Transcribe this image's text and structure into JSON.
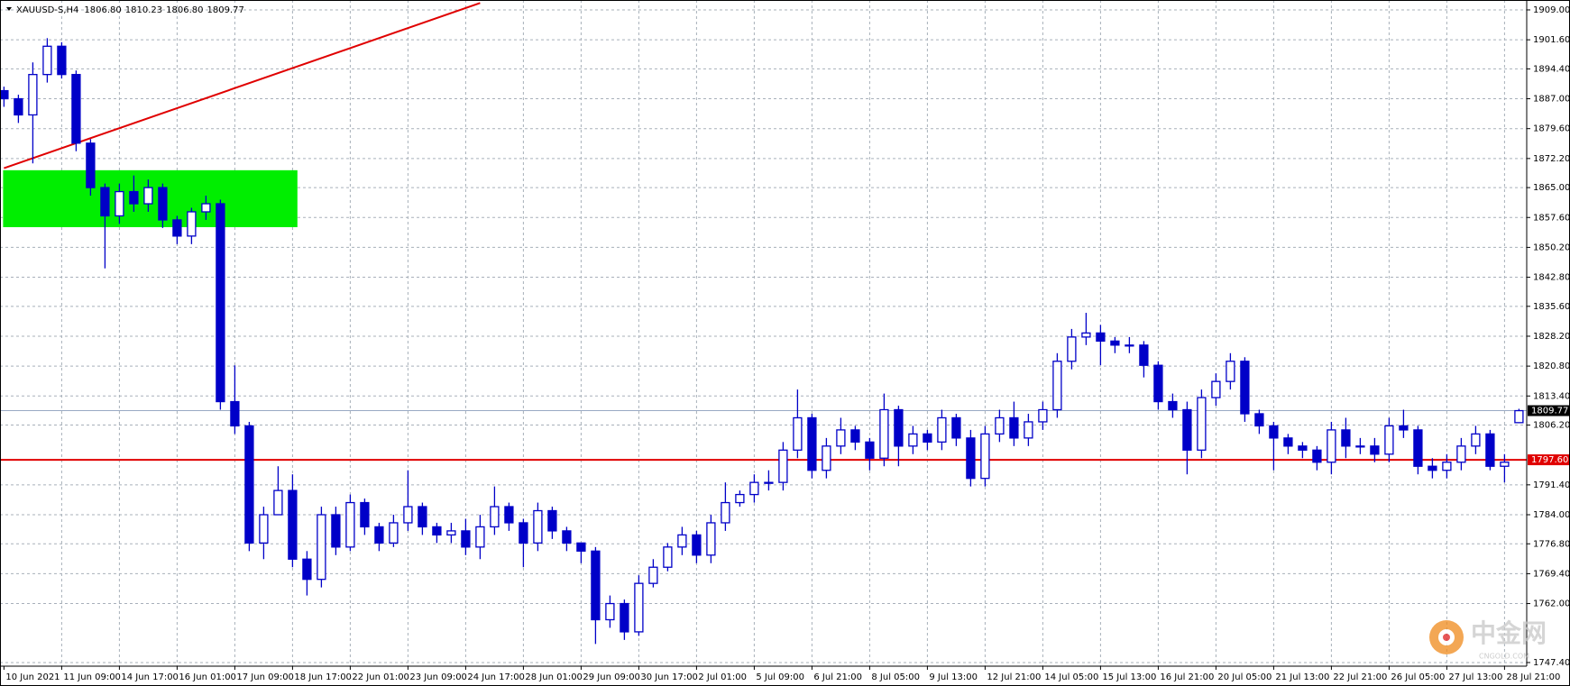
{
  "chart_data": {
    "type": "candlestick",
    "title": "XAUUSD-S,H4",
    "header_values": [
      {
        "value": 1806.8,
        "label": "1806.80"
      },
      {
        "value": 1810.23,
        "label": "1810.23"
      },
      {
        "value": 1806.8,
        "label": "1806.80"
      },
      {
        "value": 1809.77,
        "label": "1809.77"
      }
    ],
    "categories": [
      "10 Jun 2021",
      null,
      null,
      null,
      "11 Jun 09:00",
      null,
      null,
      null,
      "14 Jun 17:00",
      null,
      null,
      null,
      "16 Jun 01:00",
      null,
      null,
      null,
      "17 Jun 09:00",
      null,
      null,
      null,
      "18 Jun 17:00",
      null,
      null,
      null,
      "22 Jun 01:00",
      null,
      null,
      null,
      "23 Jun 09:00",
      null,
      null,
      null,
      "24 Jun 17:00",
      null,
      null,
      null,
      "28 Jun 01:00",
      null,
      null,
      null,
      "29 Jun 09:00",
      null,
      null,
      null,
      "30 Jun 17:00",
      null,
      null,
      null,
      "2 Jul 01:00",
      null,
      null,
      null,
      "5 Jul 09:00",
      null,
      null,
      null,
      "6 Jul 21:00",
      null,
      null,
      null,
      "8 Jul 05:00",
      null,
      null,
      null,
      "9 Jul 13:00",
      null,
      null,
      null,
      "12 Jul 21:00",
      null,
      null,
      null,
      "14 Jul 05:00",
      null,
      null,
      null,
      "15 Jul 13:00",
      null,
      null,
      null,
      "16 Jul 21:00",
      null,
      null,
      null,
      "20 Jul 05:00",
      null,
      null,
      null,
      "21 Jul 13:00",
      null,
      null,
      null,
      "22 Jul 21:00",
      null,
      null,
      null,
      "26 Jul 05:00",
      null,
      null,
      null,
      "27 Jul 13:00",
      null,
      null,
      null,
      "28 Jul 21:00",
      null
    ],
    "open": [
      1889,
      1887,
      1883,
      1893,
      1900,
      1893,
      1876,
      1865,
      1858,
      1864,
      1861,
      1865,
      1857,
      1853,
      1859,
      1861,
      1812,
      1806,
      1777,
      1784,
      1790,
      1773,
      1768,
      1784,
      1776,
      1787,
      1781,
      1777,
      1782,
      1786,
      1781,
      1779,
      1780,
      1776,
      1781,
      1786,
      1782,
      1777,
      1785,
      1780,
      1777,
      1775,
      1758,
      1762,
      1755,
      1767,
      1771,
      1776,
      1779,
      1774,
      1782,
      1787,
      1789,
      1792,
      1792,
      1800,
      1808,
      1795,
      1801,
      1805,
      1802,
      1798,
      1810,
      1801,
      1804,
      1802,
      1808,
      1803,
      1793,
      1804,
      1808,
      1803,
      1807,
      1810,
      1822,
      1828,
      1829,
      1827,
      1826,
      1826,
      1821,
      1812,
      1810,
      1800,
      1813,
      1817,
      1822,
      1809,
      1806,
      1803,
      1801,
      1800,
      1797,
      1805,
      1801,
      1801,
      1799,
      1806,
      1805,
      1796,
      1795,
      1797,
      1801,
      1804,
      1796,
      1806.8
    ],
    "high": [
      1890,
      1888,
      1896,
      1902,
      1901,
      1894,
      1877,
      1866,
      1866,
      1868,
      1867,
      1866,
      1858,
      1860,
      1863,
      1862,
      1821,
      1807,
      1786,
      1796,
      1794,
      1775,
      1786,
      1786,
      1789,
      1788,
      1782,
      1784,
      1795,
      1787,
      1782,
      1782,
      1783,
      1784,
      1791,
      1787,
      1783,
      1787,
      1786,
      1781,
      1777,
      1776,
      1764,
      1763,
      1769,
      1773,
      1777,
      1781,
      1780,
      1784,
      1792,
      1790,
      1794,
      1795,
      1802,
      1815,
      1809,
      1803,
      1808,
      1806,
      1803,
      1814,
      1811,
      1806,
      1805,
      1810,
      1809,
      1805,
      1806,
      1810,
      1812,
      1809,
      1812,
      1824,
      1830,
      1834,
      1831,
      1828,
      1828,
      1827,
      1822,
      1814,
      1812,
      1815,
      1819,
      1824,
      1823,
      1810,
      1807,
      1804,
      1802,
      1801,
      1807,
      1808,
      1803,
      1803,
      1808,
      1810,
      1806,
      1798,
      1799,
      1803,
      1806,
      1805,
      1799,
      1810.23
    ],
    "low": [
      1885,
      1881,
      1871,
      1891,
      1892,
      1874,
      1863,
      1845,
      1856,
      1859,
      1859,
      1855,
      1851,
      1851,
      1857,
      1810,
      1804,
      1775,
      1773,
      1784,
      1771,
      1764,
      1766,
      1774,
      1775,
      1779,
      1775,
      1776,
      1780,
      1779,
      1777,
      1777,
      1774,
      1773,
      1779,
      1780,
      1771,
      1775,
      1778,
      1775,
      1772,
      1752,
      1756,
      1753,
      1754,
      1766,
      1770,
      1774,
      1772,
      1772,
      1780,
      1786,
      1787,
      1790,
      1790,
      1798,
      1793,
      1793,
      1799,
      1800,
      1795,
      1796,
      1796,
      1799,
      1800,
      1800,
      1801,
      1791,
      1791,
      1802,
      1801,
      1801,
      1805,
      1808,
      1820,
      1826,
      1821,
      1824,
      1824,
      1818,
      1810,
      1808,
      1794,
      1798,
      1811,
      1815,
      1807,
      1804,
      1795,
      1799,
      1798,
      1795,
      1794,
      1798,
      1799,
      1797,
      1797,
      1803,
      1794,
      1793,
      1793,
      1795,
      1799,
      1795,
      1792,
      1806.8
    ],
    "close": [
      1887,
      1883,
      1893,
      1900,
      1893,
      1876,
      1865,
      1858,
      1864,
      1861,
      1865,
      1857,
      1853,
      1859,
      1861,
      1812,
      1806,
      1777,
      1784,
      1790,
      1773,
      1768,
      1784,
      1776,
      1787,
      1781,
      1777,
      1782,
      1786,
      1781,
      1779,
      1780,
      1776,
      1781,
      1786,
      1782,
      1777,
      1785,
      1780,
      1777,
      1775,
      1758,
      1762,
      1755,
      1767,
      1771,
      1776,
      1779,
      1774,
      1782,
      1787,
      1789,
      1792,
      1792,
      1800,
      1808,
      1795,
      1801,
      1805,
      1802,
      1798,
      1810,
      1801,
      1804,
      1802,
      1808,
      1803,
      1793,
      1804,
      1808,
      1803,
      1807,
      1810,
      1822,
      1828,
      1829,
      1827,
      1826,
      1826,
      1821,
      1812,
      1810,
      1800,
      1813,
      1817,
      1822,
      1809,
      1806,
      1803,
      1801,
      1800,
      1797,
      1805,
      1801,
      1801,
      1799,
      1806,
      1805,
      1796,
      1795,
      1797,
      1801,
      1804,
      1796,
      1797,
      1809.77
    ],
    "color": "#0000c8",
    "bull_fill": "#ffffff",
    "bear_fill": "#0000c8",
    "ylim": [
      1746.5,
      1911.45
    ],
    "yticks": [
      {
        "value": 1909,
        "label": "1909.00"
      },
      {
        "value": 1901.6,
        "label": "1901.60"
      },
      {
        "value": 1894.4,
        "label": "1894.40"
      },
      {
        "value": 1887,
        "label": "1887.00"
      },
      {
        "value": 1879.6,
        "label": "1879.60"
      },
      {
        "value": 1872.2,
        "label": "1872.20"
      },
      {
        "value": 1865,
        "label": "1865.00"
      },
      {
        "value": 1857.6,
        "label": "1857.60"
      },
      {
        "value": 1850.2,
        "label": "1850.20"
      },
      {
        "value": 1842.8,
        "label": "1842.80"
      },
      {
        "value": 1835.6,
        "label": "1835.60"
      },
      {
        "value": 1828.2,
        "label": "1828.20"
      },
      {
        "value": 1820.8,
        "label": "1820.80"
      },
      {
        "value": 1813.4,
        "label": "1813.40"
      },
      {
        "value": 1806.2,
        "label": "1806.20"
      },
      {
        "value": 1791.4,
        "label": "1791.40"
      },
      {
        "value": 1784,
        "label": "1784.00"
      },
      {
        "value": 1776.8,
        "label": "1776.80"
      },
      {
        "value": 1769.4,
        "label": "1769.40"
      },
      {
        "value": 1762,
        "label": "1762.00"
      },
      {
        "value": 1747.4,
        "label": "1747.40"
      }
    ],
    "grid": true,
    "hlines": [
      {
        "value": 1809.77,
        "label": "1809.77",
        "color": "#9aaac4",
        "tag_color": "#000000"
      },
      {
        "value": 1797.6,
        "label": "1797.60",
        "color": "#e00000",
        "tag_color": "#e00000"
      }
    ],
    "trendline": {
      "start": [
        0,
        1869.8
      ],
      "end": [
        33,
        1910.7
      ],
      "color": "#e00000"
    },
    "zone": {
      "start": 0,
      "end": 20.4,
      "low": 1855.2,
      "high": 1869.3,
      "color": "#00ee00"
    },
    "watermark": {
      "name": "中金网",
      "site": "CNGOLD.COM"
    }
  }
}
